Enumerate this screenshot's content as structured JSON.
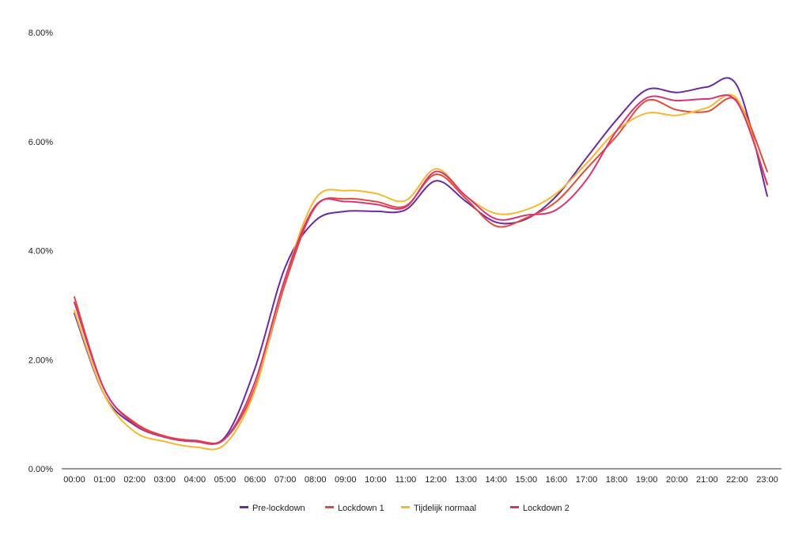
{
  "chart_data": {
    "type": "line",
    "title": "",
    "xlabel": "",
    "ylabel": "",
    "categories": [
      "00:00",
      "01:00",
      "02:00",
      "03:00",
      "04:00",
      "05:00",
      "06:00",
      "07:00",
      "08:00",
      "09:00",
      "10:00",
      "11:00",
      "12:00",
      "13:00",
      "14:00",
      "15:00",
      "16:00",
      "17:00",
      "18:00",
      "19:00",
      "20:00",
      "21:00",
      "22:00",
      "23:00"
    ],
    "ylim": [
      0,
      8
    ],
    "yticks": [
      0,
      2,
      4,
      6,
      8
    ],
    "ytick_labels": [
      "0.00%",
      "2.00%",
      "4.00%",
      "6.00%",
      "8.00%"
    ],
    "legend_position": "bottom",
    "grid": false,
    "series": [
      {
        "name": "Pre-lockdown",
        "color": "#6a2c9e",
        "values": [
          2.85,
          1.35,
          0.8,
          0.58,
          0.5,
          0.58,
          1.85,
          3.7,
          4.55,
          4.72,
          4.72,
          4.75,
          5.28,
          4.9,
          4.52,
          4.58,
          5.0,
          5.7,
          6.4,
          6.95,
          6.9,
          7.0,
          7.02,
          5.0
        ]
      },
      {
        "name": "Lockdown 1",
        "color": "#e24a3b",
        "values": [
          3.15,
          1.45,
          0.85,
          0.6,
          0.52,
          0.55,
          1.5,
          3.4,
          4.8,
          4.95,
          4.9,
          4.82,
          5.4,
          4.95,
          4.45,
          4.6,
          4.9,
          5.5,
          6.1,
          6.75,
          6.58,
          6.55,
          6.75,
          5.45
        ]
      },
      {
        "name": "Tijdelijk normaal",
        "color": "#f6b82e",
        "values": [
          2.9,
          1.35,
          0.68,
          0.5,
          0.4,
          0.45,
          1.45,
          3.5,
          4.95,
          5.1,
          5.05,
          4.92,
          5.5,
          5.0,
          4.68,
          4.75,
          5.05,
          5.6,
          6.2,
          6.52,
          6.48,
          6.62,
          6.78,
          5.2
        ]
      },
      {
        "name": "Lockdown 2",
        "color": "#d63574",
        "values": [
          3.05,
          1.45,
          0.82,
          0.58,
          0.5,
          0.55,
          1.6,
          3.5,
          4.82,
          4.9,
          4.85,
          4.8,
          5.45,
          5.0,
          4.58,
          4.65,
          4.75,
          5.3,
          6.2,
          6.8,
          6.75,
          6.78,
          6.72,
          5.22
        ]
      }
    ]
  }
}
